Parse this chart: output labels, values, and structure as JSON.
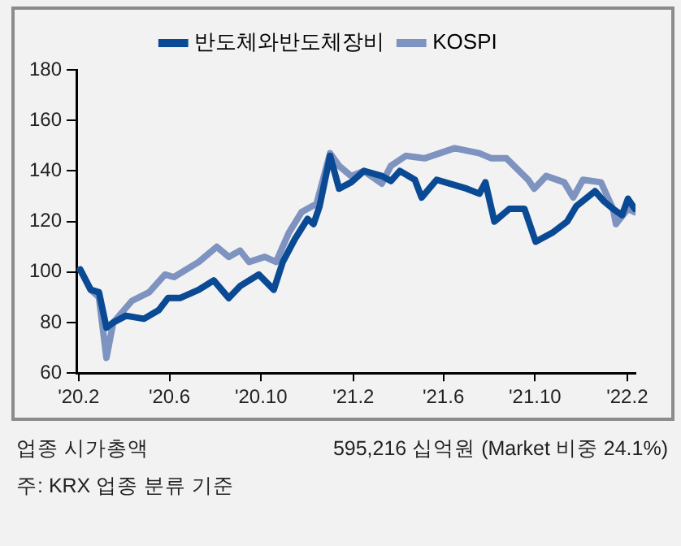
{
  "chart_data": {
    "type": "line",
    "legend": "top",
    "grid": false,
    "marker": "none",
    "line_style": "solid",
    "xlim": [
      "2020-01-29",
      "2022-02-12"
    ],
    "xticks": [
      {
        "value": "2020-02-01",
        "label": "'20.2"
      },
      {
        "value": "2020-06-01",
        "label": "'20.6"
      },
      {
        "value": "2020-10-01",
        "label": "'20.10"
      },
      {
        "value": "2021-02-01",
        "label": "'21.2"
      },
      {
        "value": "2021-06-01",
        "label": "'21.6"
      },
      {
        "value": "2021-10-01",
        "label": "'21.10"
      },
      {
        "value": "2022-02-01",
        "label": "'22.2"
      }
    ],
    "ylim": [
      60,
      180
    ],
    "yticks": [
      60,
      80,
      100,
      120,
      140,
      160,
      180
    ],
    "annotations": [
      "업종 시가총액",
      "595,216 십억원 (Market 비중 24.1%)",
      "주: KRX 업종 분류 기준"
    ],
    "series": [
      {
        "name": "반도체와반도체장비",
        "color": "#0a4a94",
        "x": [
          "2020-02-03",
          "2020-02-17",
          "2020-02-28",
          "2020-03-09",
          "2020-03-18",
          "2020-04-04",
          "2020-04-28",
          "2020-05-18",
          "2020-05-30",
          "2020-06-15",
          "2020-07-10",
          "2020-07-30",
          "2020-08-19",
          "2020-09-03",
          "2020-09-28",
          "2020-10-18",
          "2020-10-30",
          "2020-11-15",
          "2020-12-02",
          "2020-12-10",
          "2020-12-18",
          "2021-01-01",
          "2021-01-13",
          "2021-01-29",
          "2021-02-15",
          "2021-03-11",
          "2021-03-23",
          "2021-04-04",
          "2021-04-24",
          "2021-05-03",
          "2021-05-23",
          "2021-07-02",
          "2021-07-19",
          "2021-07-27",
          "2021-08-08",
          "2021-08-28",
          "2021-09-17",
          "2021-10-02",
          "2021-10-24",
          "2021-11-13",
          "2021-11-25",
          "2021-12-20",
          "2022-01-01",
          "2022-01-13",
          "2022-01-25",
          "2022-02-02",
          "2022-02-11"
        ],
        "values": [
          101,
          93,
          92,
          78,
          80,
          82.7,
          81.5,
          85,
          89.7,
          89.7,
          93,
          96.7,
          89.7,
          94.4,
          99,
          93,
          104,
          113,
          121,
          119,
          126,
          146,
          133,
          135.5,
          140,
          138,
          136,
          140,
          136.5,
          129.5,
          136.5,
          133,
          131,
          135.5,
          120,
          125,
          125,
          112,
          115.5,
          120,
          126,
          132,
          128,
          125,
          122.5,
          129,
          125
        ]
      },
      {
        "name": "KOSPI",
        "color": "#7f93c0",
        "x": [
          "2020-02-03",
          "2020-02-17",
          "2020-02-28",
          "2020-03-09",
          "2020-03-18",
          "2020-04-12",
          "2020-05-05",
          "2020-05-26",
          "2020-06-07",
          "2020-07-10",
          "2020-08-03",
          "2020-08-19",
          "2020-09-03",
          "2020-09-15",
          "2020-10-06",
          "2020-10-21",
          "2020-11-07",
          "2020-11-24",
          "2020-12-14",
          "2021-01-01",
          "2021-01-13",
          "2021-01-29",
          "2021-02-15",
          "2021-03-11",
          "2021-03-23",
          "2021-04-12",
          "2021-05-07",
          "2021-06-16",
          "2021-07-19",
          "2021-08-04",
          "2021-08-24",
          "2021-09-22",
          "2021-09-30",
          "2021-10-16",
          "2021-11-09",
          "2021-11-21",
          "2021-12-04",
          "2021-12-28",
          "2022-01-13",
          "2022-01-17",
          "2022-02-02",
          "2022-02-11"
        ],
        "values": [
          101,
          93,
          90,
          66,
          80,
          88.6,
          92,
          99,
          98,
          104,
          110,
          106,
          108.5,
          104,
          106,
          104,
          115.5,
          123.7,
          127,
          147,
          142,
          138,
          140,
          135,
          142,
          146,
          145,
          149,
          147,
          145,
          145,
          136.5,
          133,
          138,
          135.5,
          129.5,
          136.5,
          135.5,
          125,
          119,
          125,
          123.7
        ]
      }
    ]
  }
}
